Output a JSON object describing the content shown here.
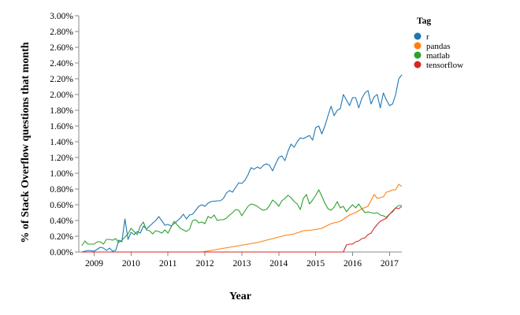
{
  "chart_data": {
    "type": "line",
    "xlabel": "Year",
    "ylabel": "% of Stack Overflow questions that month",
    "legend_title": "Tag",
    "legend_position": "top-right",
    "x_range": [
      "2008-08",
      "2017-05"
    ],
    "ylim": [
      0,
      3
    ],
    "y_ticks": [
      0,
      0.2,
      0.4,
      0.6,
      0.8,
      1.0,
      1.2,
      1.4,
      1.6,
      1.8,
      2.0,
      2.2,
      2.4,
      2.6,
      2.8,
      3.0
    ],
    "y_tick_labels": [
      "0.00%",
      "0.20%",
      "0.40%",
      "0.60%",
      "0.80%",
      "1.00%",
      "1.20%",
      "1.40%",
      "1.60%",
      "1.80%",
      "2.00%",
      "2.20%",
      "2.40%",
      "2.60%",
      "2.80%",
      "3.00%"
    ],
    "x_ticks": [
      "2009-01",
      "2010-01",
      "2011-01",
      "2012-01",
      "2013-01",
      "2014-01",
      "2015-01",
      "2016-01",
      "2017-01"
    ],
    "x_tick_labels": [
      "2009",
      "2010",
      "2011",
      "2012",
      "2013",
      "2014",
      "2015",
      "2016",
      "2017"
    ],
    "grid": false,
    "series": [
      {
        "name": "r",
        "color": "#1f77b4",
        "points": [
          [
            "2008-09",
            0.0
          ],
          [
            "2008-11",
            0.02
          ],
          [
            "2009-01",
            0.01
          ],
          [
            "2009-03",
            0.06
          ],
          [
            "2009-04",
            0.05
          ],
          [
            "2009-05",
            0.02
          ],
          [
            "2009-06",
            0.05
          ],
          [
            "2009-07",
            0.01
          ],
          [
            "2009-08",
            0.02
          ],
          [
            "2009-09",
            0.15
          ],
          [
            "2009-10",
            0.13
          ],
          [
            "2009-11",
            0.42
          ],
          [
            "2009-12",
            0.16
          ],
          [
            "2010-01",
            0.25
          ],
          [
            "2010-02",
            0.22
          ],
          [
            "2010-03",
            0.26
          ],
          [
            "2010-04",
            0.24
          ],
          [
            "2010-05",
            0.33
          ],
          [
            "2010-06",
            0.29
          ],
          [
            "2010-07",
            0.33
          ],
          [
            "2010-09",
            0.4
          ],
          [
            "2010-10",
            0.45
          ],
          [
            "2010-12",
            0.34
          ],
          [
            "2011-01",
            0.35
          ],
          [
            "2011-02",
            0.33
          ],
          [
            "2011-03",
            0.36
          ],
          [
            "2011-05",
            0.43
          ],
          [
            "2011-06",
            0.48
          ],
          [
            "2011-07",
            0.42
          ],
          [
            "2011-08",
            0.47
          ],
          [
            "2011-09",
            0.48
          ],
          [
            "2011-11",
            0.58
          ],
          [
            "2011-12",
            0.6
          ],
          [
            "2012-01",
            0.58
          ],
          [
            "2012-02",
            0.62
          ],
          [
            "2012-03",
            0.64
          ],
          [
            "2012-05",
            0.65
          ],
          [
            "2012-06",
            0.65
          ],
          [
            "2012-07",
            0.68
          ],
          [
            "2012-08",
            0.75
          ],
          [
            "2012-09",
            0.78
          ],
          [
            "2012-10",
            0.76
          ],
          [
            "2012-11",
            0.82
          ],
          [
            "2012-12",
            0.88
          ],
          [
            "2013-01",
            0.87
          ],
          [
            "2013-02",
            0.91
          ],
          [
            "2013-03",
            0.98
          ],
          [
            "2013-04",
            1.07
          ],
          [
            "2013-05",
            1.05
          ],
          [
            "2013-06",
            1.08
          ],
          [
            "2013-07",
            1.06
          ],
          [
            "2013-08",
            1.1
          ],
          [
            "2013-09",
            1.12
          ],
          [
            "2013-10",
            1.1
          ],
          [
            "2013-11",
            1.03
          ],
          [
            "2013-12",
            1.12
          ],
          [
            "2014-01",
            1.2
          ],
          [
            "2014-02",
            1.22
          ],
          [
            "2014-03",
            1.16
          ],
          [
            "2014-04",
            1.28
          ],
          [
            "2014-05",
            1.37
          ],
          [
            "2014-06",
            1.33
          ],
          [
            "2014-07",
            1.4
          ],
          [
            "2014-08",
            1.45
          ],
          [
            "2014-09",
            1.44
          ],
          [
            "2014-10",
            1.46
          ],
          [
            "2014-11",
            1.48
          ],
          [
            "2014-12",
            1.42
          ],
          [
            "2015-01",
            1.58
          ],
          [
            "2015-02",
            1.6
          ],
          [
            "2015-03",
            1.5
          ],
          [
            "2015-04",
            1.6
          ],
          [
            "2015-05",
            1.73
          ],
          [
            "2015-06",
            1.85
          ],
          [
            "2015-07",
            1.73
          ],
          [
            "2015-08",
            1.8
          ],
          [
            "2015-09",
            1.82
          ],
          [
            "2015-10",
            2.0
          ],
          [
            "2015-11",
            1.93
          ],
          [
            "2015-12",
            1.86
          ],
          [
            "2016-01",
            1.96
          ],
          [
            "2016-02",
            1.96
          ],
          [
            "2016-03",
            1.83
          ],
          [
            "2016-04",
            1.95
          ],
          [
            "2016-05",
            2.02
          ],
          [
            "2016-06",
            2.05
          ],
          [
            "2016-07",
            1.88
          ],
          [
            "2016-08",
            1.97
          ],
          [
            "2016-09",
            2.0
          ],
          [
            "2016-10",
            1.83
          ],
          [
            "2016-11",
            2.02
          ],
          [
            "2016-12",
            1.93
          ],
          [
            "2017-01",
            1.86
          ],
          [
            "2017-02",
            1.88
          ],
          [
            "2017-03",
            2.0
          ],
          [
            "2017-04",
            2.2
          ],
          [
            "2017-05",
            2.25
          ]
        ]
      },
      {
        "name": "pandas",
        "color": "#ff7f0e",
        "points": [
          [
            "2008-09",
            0.0
          ],
          [
            "2011-12",
            0.0
          ],
          [
            "2012-03",
            0.02
          ],
          [
            "2012-06",
            0.04
          ],
          [
            "2012-09",
            0.06
          ],
          [
            "2012-12",
            0.08
          ],
          [
            "2013-03",
            0.1
          ],
          [
            "2013-06",
            0.12
          ],
          [
            "2013-09",
            0.15
          ],
          [
            "2013-12",
            0.18
          ],
          [
            "2014-03",
            0.21
          ],
          [
            "2014-06",
            0.23
          ],
          [
            "2014-09",
            0.27
          ],
          [
            "2014-12",
            0.28
          ],
          [
            "2015-03",
            0.3
          ],
          [
            "2015-06",
            0.36
          ],
          [
            "2015-09",
            0.39
          ],
          [
            "2015-12",
            0.47
          ],
          [
            "2016-02",
            0.5
          ],
          [
            "2016-04",
            0.55
          ],
          [
            "2016-06",
            0.58
          ],
          [
            "2016-08",
            0.73
          ],
          [
            "2016-09",
            0.68
          ],
          [
            "2016-11",
            0.7
          ],
          [
            "2016-12",
            0.76
          ],
          [
            "2017-01",
            0.77
          ],
          [
            "2017-02",
            0.79
          ],
          [
            "2017-03",
            0.79
          ],
          [
            "2017-04",
            0.86
          ],
          [
            "2017-05",
            0.83
          ]
        ]
      },
      {
        "name": "matlab",
        "color": "#2ca02c",
        "points": [
          [
            "2008-09",
            0.08
          ],
          [
            "2008-10",
            0.14
          ],
          [
            "2008-11",
            0.1
          ],
          [
            "2009-01",
            0.1
          ],
          [
            "2009-02",
            0.13
          ],
          [
            "2009-03",
            0.13
          ],
          [
            "2009-04",
            0.1
          ],
          [
            "2009-05",
            0.16
          ],
          [
            "2009-06",
            0.16
          ],
          [
            "2009-07",
            0.15
          ],
          [
            "2009-08",
            0.17
          ],
          [
            "2009-09",
            0.12
          ],
          [
            "2009-10",
            0.15
          ],
          [
            "2009-12",
            0.23
          ],
          [
            "2010-01",
            0.3
          ],
          [
            "2010-03",
            0.22
          ],
          [
            "2010-04",
            0.33
          ],
          [
            "2010-05",
            0.38
          ],
          [
            "2010-06",
            0.28
          ],
          [
            "2010-07",
            0.27
          ],
          [
            "2010-08",
            0.23
          ],
          [
            "2010-09",
            0.27
          ],
          [
            "2010-10",
            0.26
          ],
          [
            "2010-11",
            0.24
          ],
          [
            "2010-12",
            0.28
          ],
          [
            "2011-01",
            0.24
          ],
          [
            "2011-03",
            0.39
          ],
          [
            "2011-05",
            0.3
          ],
          [
            "2011-06",
            0.28
          ],
          [
            "2011-07",
            0.26
          ],
          [
            "2011-08",
            0.29
          ],
          [
            "2011-09",
            0.4
          ],
          [
            "2011-10",
            0.41
          ],
          [
            "2011-11",
            0.37
          ],
          [
            "2011-12",
            0.38
          ],
          [
            "2012-01",
            0.36
          ],
          [
            "2012-02",
            0.45
          ],
          [
            "2012-03",
            0.43
          ],
          [
            "2012-04",
            0.47
          ],
          [
            "2012-05",
            0.4
          ],
          [
            "2012-06",
            0.41
          ],
          [
            "2012-07",
            0.41
          ],
          [
            "2012-08",
            0.43
          ],
          [
            "2012-09",
            0.47
          ],
          [
            "2012-10",
            0.5
          ],
          [
            "2012-11",
            0.54
          ],
          [
            "2012-12",
            0.53
          ],
          [
            "2013-01",
            0.46
          ],
          [
            "2013-02",
            0.52
          ],
          [
            "2013-03",
            0.58
          ],
          [
            "2013-04",
            0.61
          ],
          [
            "2013-05",
            0.6
          ],
          [
            "2013-06",
            0.58
          ],
          [
            "2013-07",
            0.55
          ],
          [
            "2013-08",
            0.53
          ],
          [
            "2013-09",
            0.54
          ],
          [
            "2013-10",
            0.59
          ],
          [
            "2013-11",
            0.66
          ],
          [
            "2013-12",
            0.63
          ],
          [
            "2014-01",
            0.58
          ],
          [
            "2014-02",
            0.65
          ],
          [
            "2014-03",
            0.68
          ],
          [
            "2014-04",
            0.72
          ],
          [
            "2014-05",
            0.69
          ],
          [
            "2014-06",
            0.64
          ],
          [
            "2014-07",
            0.61
          ],
          [
            "2014-08",
            0.54
          ],
          [
            "2014-09",
            0.68
          ],
          [
            "2014-10",
            0.73
          ],
          [
            "2014-11",
            0.61
          ],
          [
            "2014-12",
            0.66
          ],
          [
            "2015-01",
            0.72
          ],
          [
            "2015-02",
            0.79
          ],
          [
            "2015-03",
            0.71
          ],
          [
            "2015-04",
            0.62
          ],
          [
            "2015-05",
            0.55
          ],
          [
            "2015-06",
            0.53
          ],
          [
            "2015-07",
            0.57
          ],
          [
            "2015-08",
            0.64
          ],
          [
            "2015-09",
            0.56
          ],
          [
            "2015-10",
            0.58
          ],
          [
            "2015-11",
            0.51
          ],
          [
            "2015-12",
            0.56
          ],
          [
            "2016-01",
            0.6
          ],
          [
            "2016-02",
            0.56
          ],
          [
            "2016-03",
            0.61
          ],
          [
            "2016-04",
            0.55
          ],
          [
            "2016-05",
            0.5
          ],
          [
            "2016-06",
            0.51
          ],
          [
            "2016-07",
            0.5
          ],
          [
            "2016-08",
            0.49
          ],
          [
            "2016-09",
            0.5
          ],
          [
            "2016-10",
            0.47
          ],
          [
            "2016-11",
            0.46
          ],
          [
            "2016-12",
            0.44
          ],
          [
            "2017-01",
            0.48
          ],
          [
            "2017-02",
            0.51
          ],
          [
            "2017-03",
            0.56
          ],
          [
            "2017-04",
            0.59
          ],
          [
            "2017-05",
            0.59
          ]
        ]
      },
      {
        "name": "tensorflow",
        "color": "#d62728",
        "points": [
          [
            "2008-09",
            0.0
          ],
          [
            "2015-10",
            0.0
          ],
          [
            "2015-11",
            0.09
          ],
          [
            "2015-12",
            0.1
          ],
          [
            "2016-01",
            0.1
          ],
          [
            "2016-02",
            0.13
          ],
          [
            "2016-03",
            0.14
          ],
          [
            "2016-04",
            0.17
          ],
          [
            "2016-05",
            0.18
          ],
          [
            "2016-06",
            0.22
          ],
          [
            "2016-07",
            0.24
          ],
          [
            "2016-08",
            0.3
          ],
          [
            "2016-09",
            0.35
          ],
          [
            "2016-10",
            0.39
          ],
          [
            "2016-11",
            0.41
          ],
          [
            "2016-12",
            0.43
          ],
          [
            "2017-01",
            0.48
          ],
          [
            "2017-02",
            0.52
          ],
          [
            "2017-03",
            0.56
          ],
          [
            "2017-04",
            0.55
          ],
          [
            "2017-05",
            0.58
          ]
        ]
      }
    ]
  }
}
